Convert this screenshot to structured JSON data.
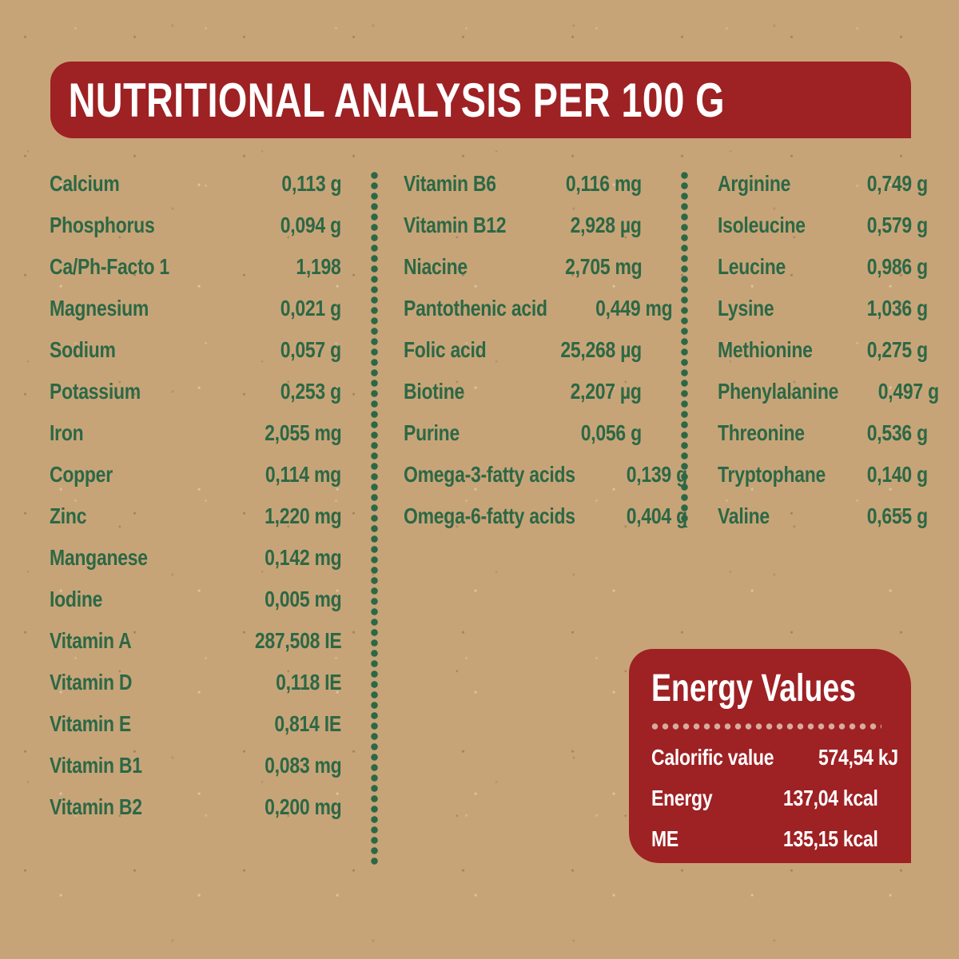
{
  "header": {
    "title": "NUTRITIONAL ANALYSIS PER 100 G"
  },
  "table": {
    "columns": [
      {
        "rows": [
          {
            "label": "Calcium",
            "value": "0,113 g"
          },
          {
            "label": "Phosphorus",
            "value": "0,094 g"
          },
          {
            "label": "Ca/Ph-Facto 1",
            "value": "1,198"
          },
          {
            "label": "Magnesium",
            "value": "0,021 g"
          },
          {
            "label": "Sodium",
            "value": "0,057 g"
          },
          {
            "label": "Potassium",
            "value": "0,253 g"
          },
          {
            "label": "Iron",
            "value": "2,055 mg"
          },
          {
            "label": "Copper",
            "value": "0,114 mg"
          },
          {
            "label": "Zinc",
            "value": "1,220 mg"
          },
          {
            "label": "Manganese",
            "value": "0,142 mg"
          },
          {
            "label": "Iodine",
            "value": "0,005 mg"
          },
          {
            "label": "Vitamin A",
            "value": "287,508 IE"
          },
          {
            "label": "Vitamin D",
            "value": "0,118 IE"
          },
          {
            "label": "Vitamin E",
            "value": "0,814 IE"
          },
          {
            "label": "Vitamin B1",
            "value": "0,083 mg"
          },
          {
            "label": "Vitamin B2",
            "value": "0,200 mg"
          }
        ]
      },
      {
        "rows": [
          {
            "label": "Vitamin B6",
            "value": "0,116 mg"
          },
          {
            "label": "Vitamin B12",
            "value": "2,928 µg"
          },
          {
            "label": "Niacine",
            "value": "2,705 mg"
          },
          {
            "label": "Pantothenic acid",
            "value": "0,449 mg"
          },
          {
            "label": "Folic acid",
            "value": "25,268 µg"
          },
          {
            "label": "Biotine",
            "value": "2,207 µg"
          },
          {
            "label": "Purine",
            "value": "0,056 g"
          },
          {
            "label": "Omega-3-fatty acids",
            "value": "0,139 g"
          },
          {
            "label": "Omega-6-fatty acids",
            "value": "0,404 g"
          }
        ]
      },
      {
        "rows": [
          {
            "label": "Arginine",
            "value": "0,749 g"
          },
          {
            "label": "Isoleucine",
            "value": "0,579 g"
          },
          {
            "label": "Leucine",
            "value": "0,986 g"
          },
          {
            "label": "Lysine",
            "value": "1,036 g"
          },
          {
            "label": "Methionine",
            "value": "0,275 g"
          },
          {
            "label": "Phenylalanine",
            "value": "0,497 g"
          },
          {
            "label": "Threonine",
            "value": "0,536 g"
          },
          {
            "label": "Tryptophane",
            "value": "0,140 g"
          },
          {
            "label": "Valine",
            "value": "0,655 g"
          }
        ]
      }
    ]
  },
  "energy": {
    "title": "Energy Values",
    "rows": [
      {
        "label": "Calorific value",
        "value": "574,54 kJ"
      },
      {
        "label": "Energy",
        "value": "137,04 kcal"
      },
      {
        "label": "ME",
        "value": "135,15 kcal"
      }
    ]
  },
  "colors": {
    "banner_red": "#9e2124",
    "text_green": "#2c6845",
    "paper_kraft": "#c7a478",
    "text_on_red": "#ffffff",
    "divider_dots_pink": "#d8ab9e"
  }
}
